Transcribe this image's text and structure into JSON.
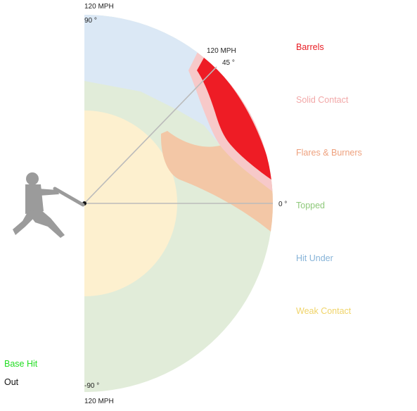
{
  "diagram": {
    "speed_top": "120 MPH",
    "speed_bottom": "120 MPH",
    "speed_45": "120 MPH",
    "angle_90": "90 °",
    "angle_45": "45 °",
    "angle_0": "0 °",
    "angle_neg90": "-90 °"
  },
  "legend": {
    "items": [
      {
        "label": "Barrels",
        "color": "#e81c23"
      },
      {
        "label": "Solid Contact",
        "color": "#f2a8a8"
      },
      {
        "label": "Flares & Burners",
        "color": "#eea17e"
      },
      {
        "label": "Topped",
        "color": "#8fc97b"
      },
      {
        "label": "Hit Under",
        "color": "#86b3d8"
      },
      {
        "label": "Weak Contact",
        "color": "#f0d46a"
      }
    ]
  },
  "outcome": {
    "base_hit": "Base Hit",
    "base_hit_color": "#22dd22",
    "out": "Out",
    "out_color": "#111111"
  },
  "zone_colors": {
    "hit_under": "#dbe8f5",
    "weak_contact": "#fdf0cf",
    "topped": "#e1ecd9",
    "flares": "#f3c7a6",
    "solid": "#f7c9c9",
    "barrels": "#ee1c25",
    "batter": "#9b9b9b",
    "line": "#bbbbbb"
  }
}
